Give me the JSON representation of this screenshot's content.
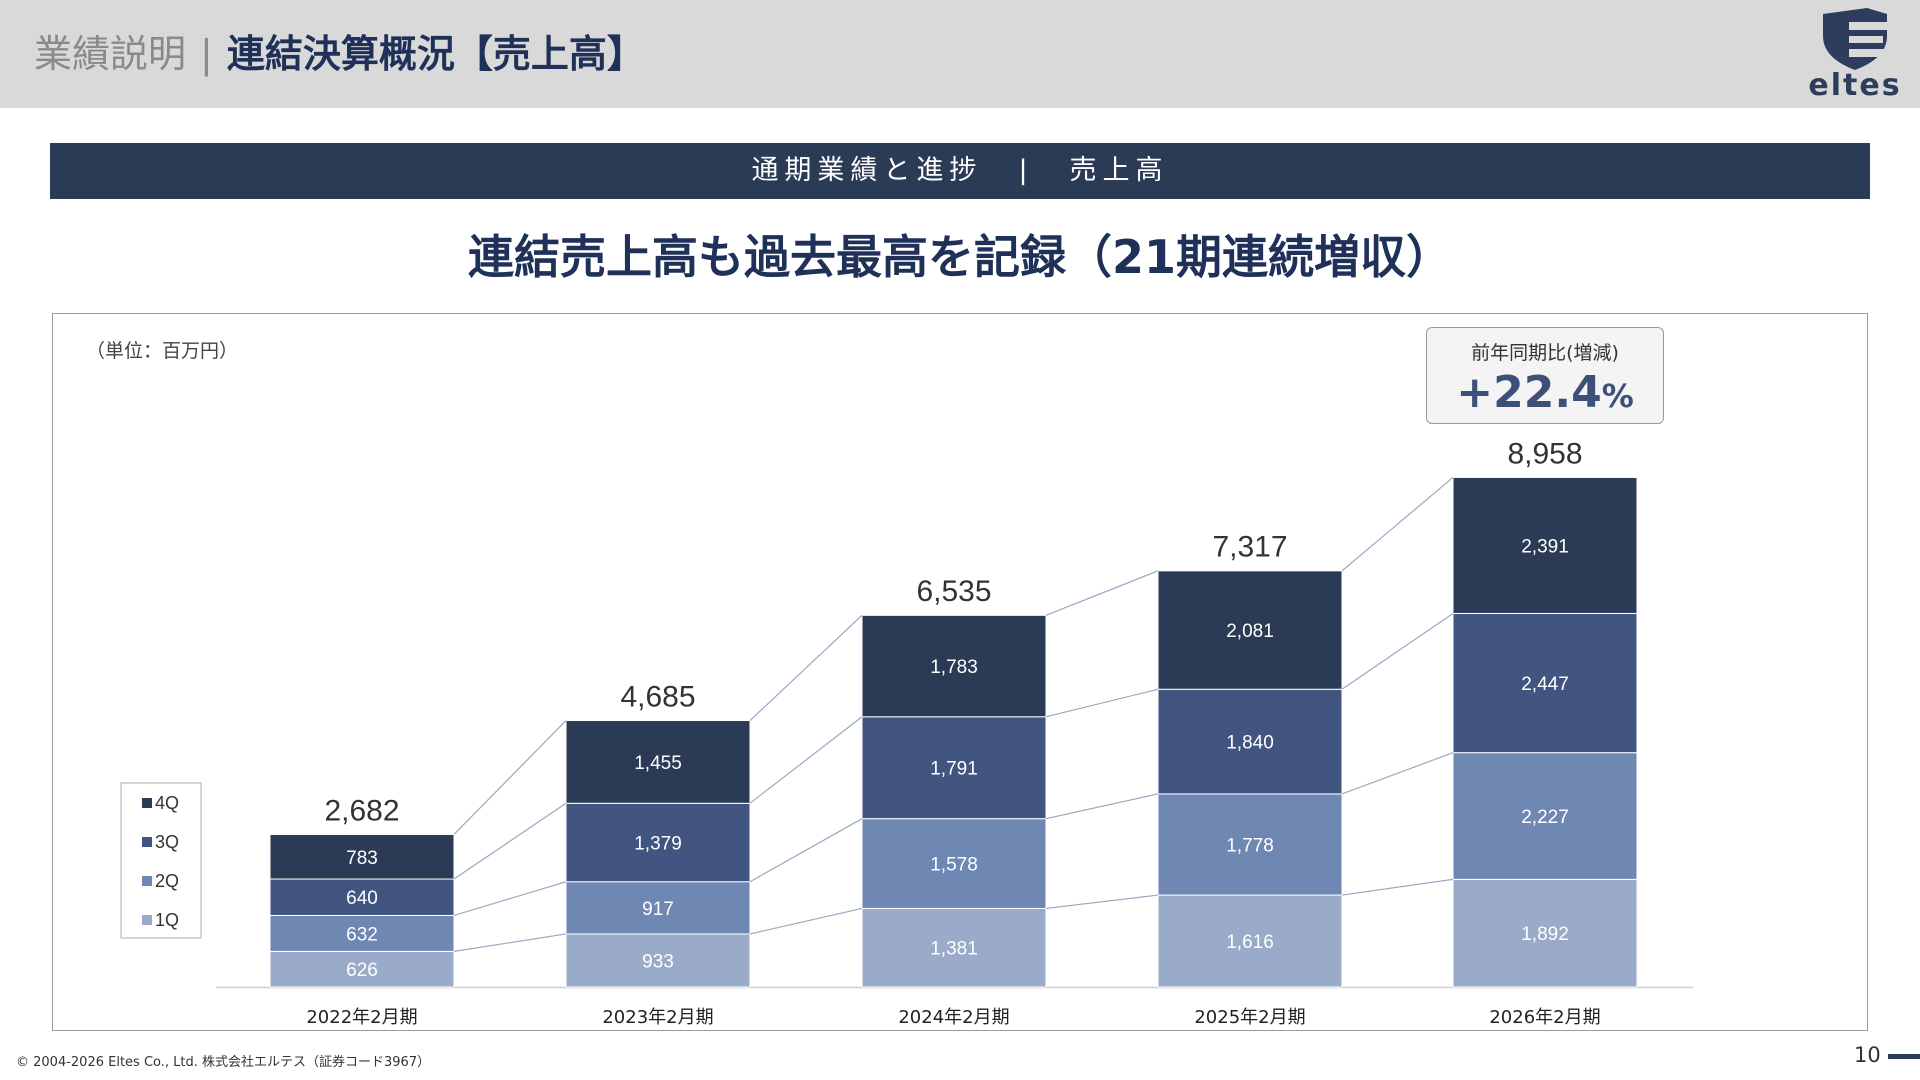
{
  "header": {
    "category": "業績説明",
    "separator": "|",
    "title": "連結決算概況【売上高】",
    "logo_text": "eltes"
  },
  "section_bar": {
    "left": "通期業績と進捗",
    "separator": "|",
    "right": "売上高"
  },
  "headline": "連結売上高も過去最高を記録（21期連続増収）",
  "unit_label": "（単位：百万円）",
  "yoy": {
    "label": "前年同期比(増減)",
    "sign": "+",
    "value": "22.4",
    "unit": "%"
  },
  "chart_data": {
    "type": "bar",
    "stacked": true,
    "categories": [
      "2022年2月期",
      "2023年2月期",
      "2024年2月期",
      "2025年2月期",
      "2026年2月期"
    ],
    "series": [
      {
        "name": "1Q",
        "values": [
          626,
          933,
          1381,
          1616,
          1892
        ],
        "color": "#9aabc9"
      },
      {
        "name": "2Q",
        "values": [
          632,
          917,
          1578,
          1778,
          2227
        ],
        "color": "#6e87b3"
      },
      {
        "name": "3Q",
        "values": [
          640,
          1379,
          1791,
          1840,
          2447
        ],
        "color": "#415580"
      },
      {
        "name": "4Q",
        "values": [
          783,
          1455,
          1783,
          2081,
          2391
        ],
        "color": "#2b3a55"
      }
    ],
    "value_labels": [
      [
        "626",
        "933",
        "1,381",
        "1,616",
        "1,892"
      ],
      [
        "632",
        "917",
        "1,578",
        "1,778",
        "2,227"
      ],
      [
        "640",
        "1,379",
        "1,791",
        "1,840",
        "2,447"
      ],
      [
        "783",
        "1,455",
        "1,783",
        "2,081",
        "2,391"
      ]
    ],
    "totals": [
      2682,
      4685,
      6535,
      7317,
      8958
    ],
    "total_labels": [
      "2,682",
      "4,685",
      "6,535",
      "7,317",
      "8,958"
    ],
    "legend_order": [
      "4Q",
      "3Q",
      "2Q",
      "1Q"
    ],
    "legend_position": "left",
    "series_lines": true,
    "ylim": [
      0,
      9000
    ],
    "grid": false,
    "title": "",
    "xlabel": "",
    "ylabel": ""
  },
  "footer": {
    "copyright": "© 2004-2026 Eltes Co., Ltd.  株式会社エルテス（証券コード3967）",
    "page_number": "10"
  }
}
